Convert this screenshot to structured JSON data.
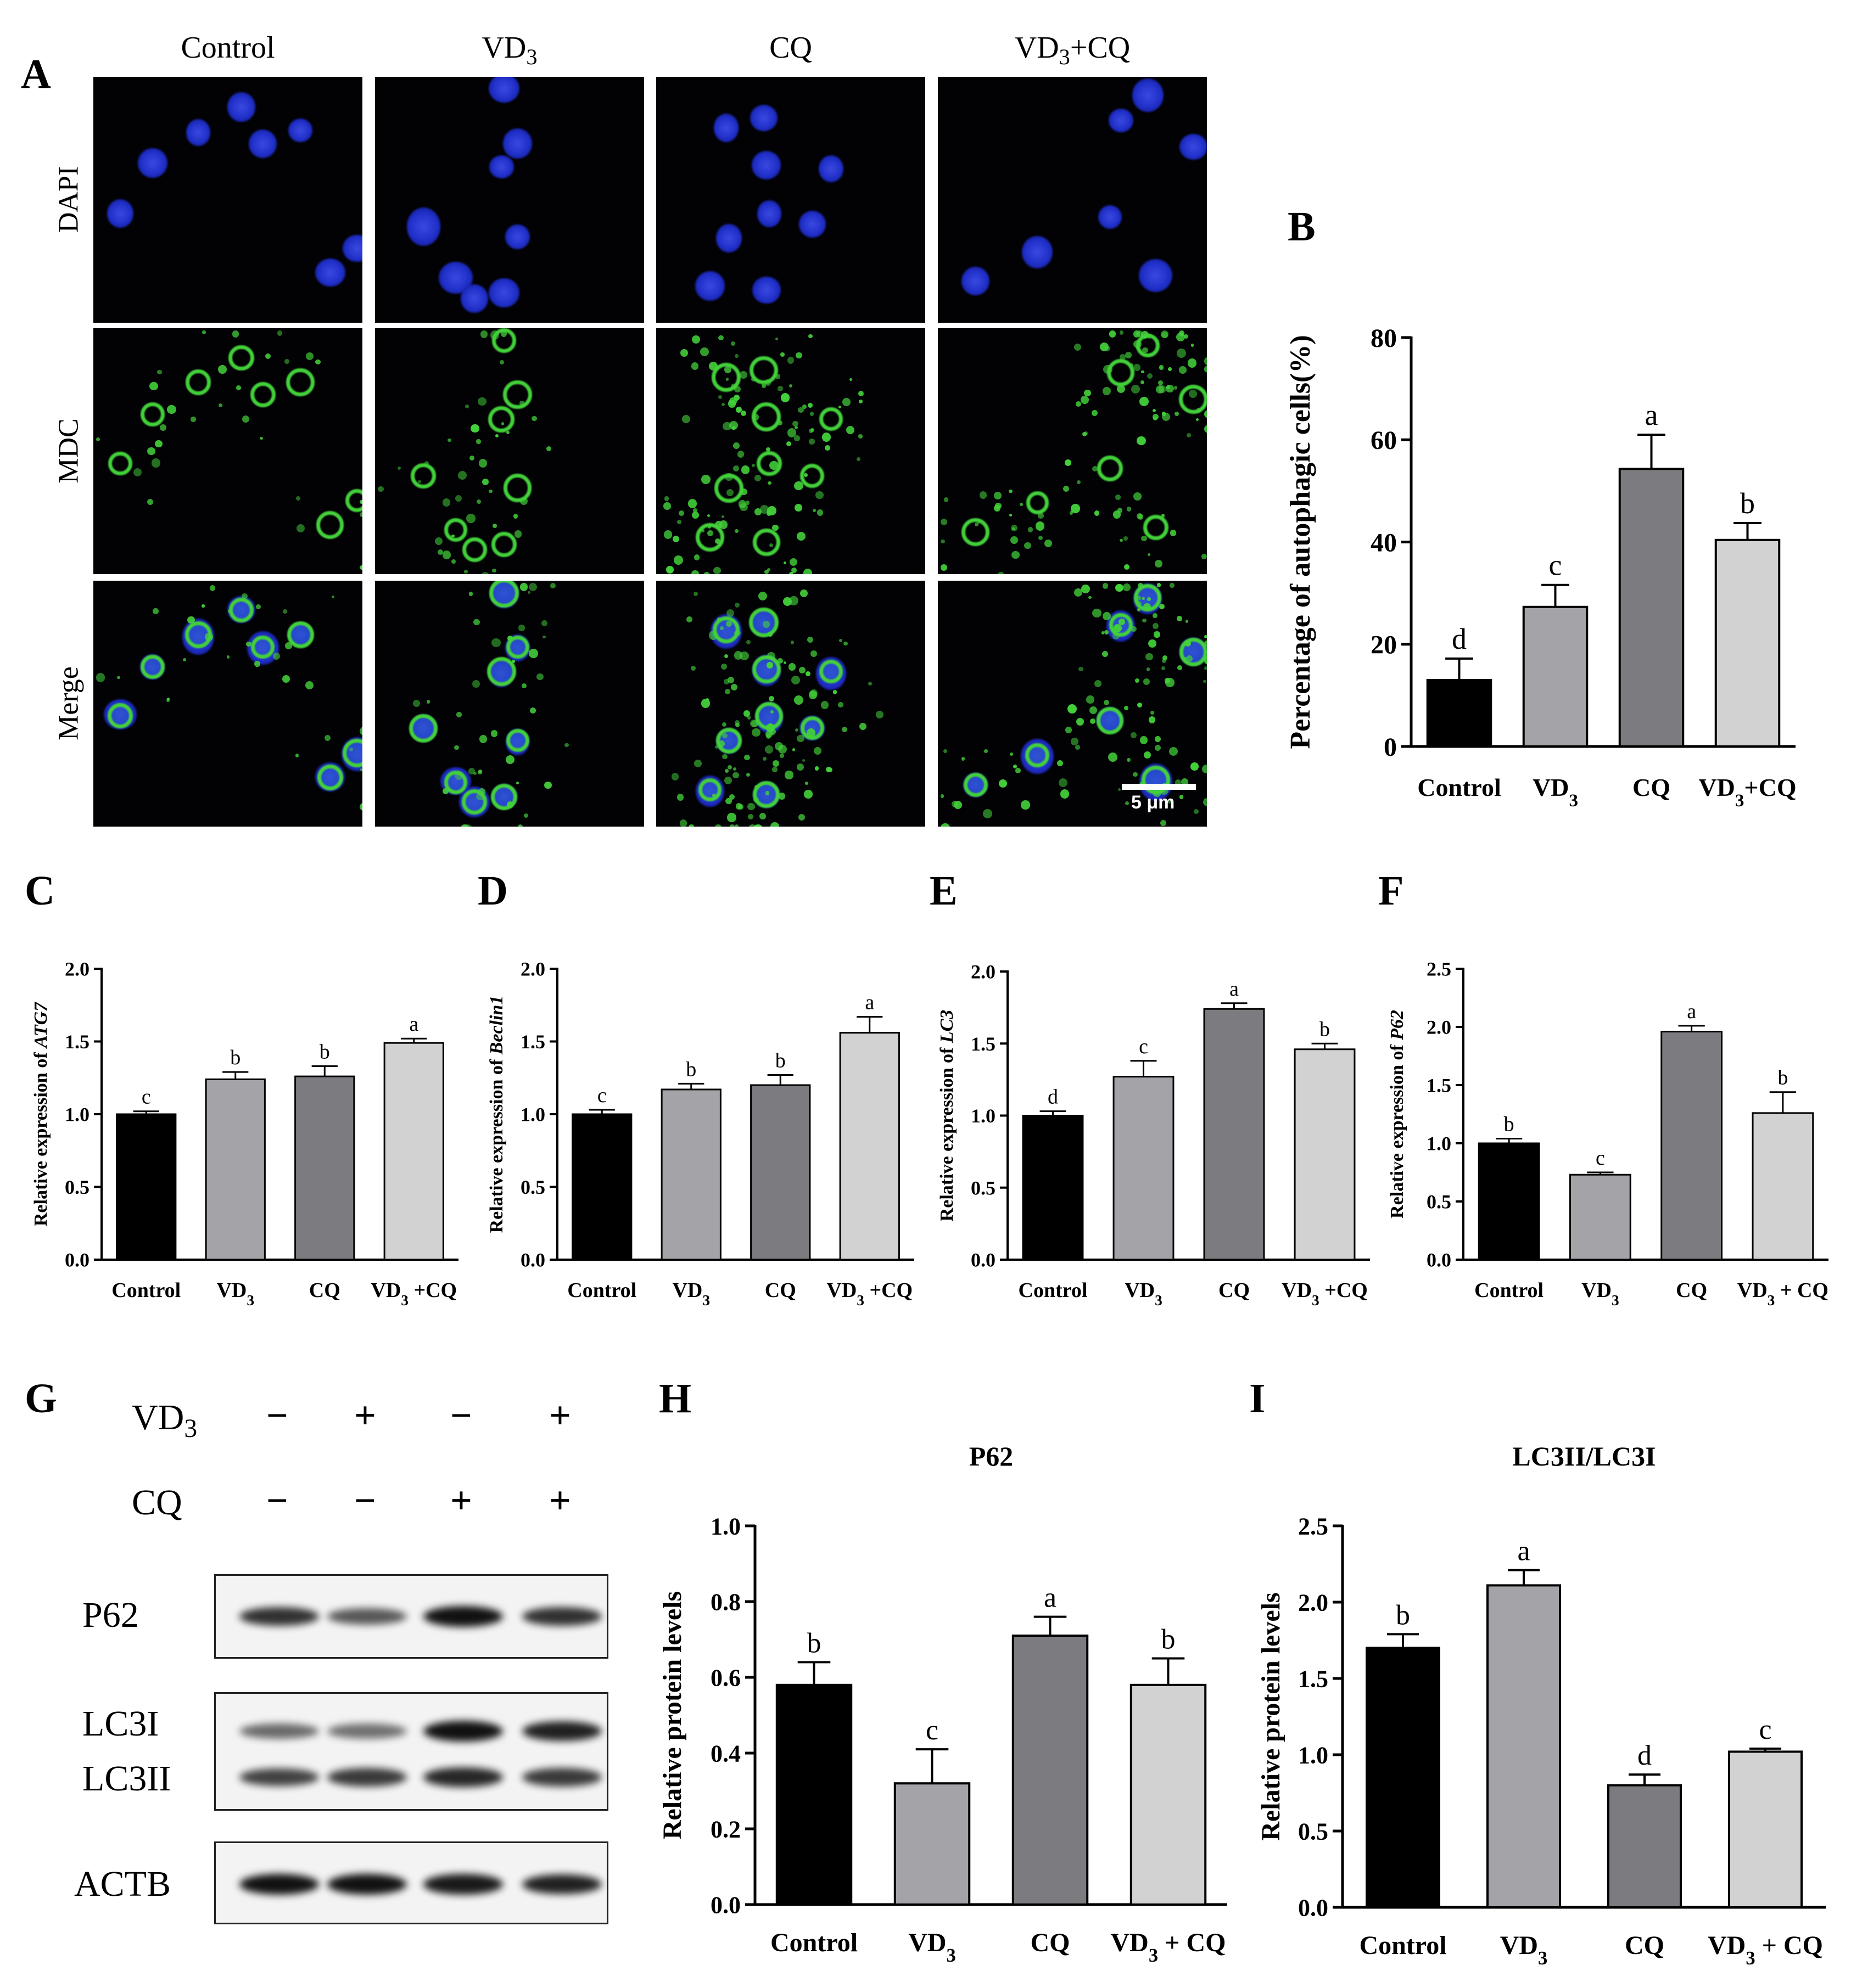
{
  "panel_letters": {
    "A": "A",
    "B": "B",
    "C": "C",
    "D": "D",
    "E": "E",
    "F": "F",
    "G": "G",
    "H": "H",
    "I": "I"
  },
  "panel_a": {
    "column_labels": [
      "Control",
      "VD3",
      "CQ",
      "VD3+CQ"
    ],
    "row_labels": [
      "DAPI",
      "MDC",
      "Merge"
    ],
    "scale_bar_label": "5 μm",
    "colors": {
      "dapi": "#1f2fc8",
      "mdc": "#43d13a",
      "background": "#020205"
    }
  },
  "panel_g": {
    "treatment_rows": [
      {
        "label": "VD3",
        "signs": [
          "−",
          "+",
          "−",
          "+"
        ]
      },
      {
        "label": "CQ",
        "signs": [
          "−",
          "−",
          "+",
          "+"
        ]
      }
    ],
    "blot_labels": {
      "p62": "P62",
      "lc3i": "LC3I",
      "lc3ii": "LC3II",
      "actb": "ACTB"
    },
    "band_intensity": {
      "p62": [
        0.8,
        0.55,
        1.0,
        0.8
      ],
      "lc3i": [
        0.45,
        0.4,
        1.0,
        0.9
      ],
      "lc3ii": [
        0.7,
        0.75,
        0.85,
        0.75
      ],
      "actb": [
        1.0,
        1.0,
        0.95,
        0.9
      ]
    }
  },
  "chart_data": [
    {
      "id": "B",
      "type": "bar",
      "title": "",
      "ylabel": "Percentage of autophagic cells(%)",
      "categories": [
        "Control",
        "VD3",
        "CQ",
        "VD3+CQ"
      ],
      "values": [
        13,
        27.3,
        54.3,
        40.4
      ],
      "errors": [
        4.2,
        4.3,
        6.7,
        3.3
      ],
      "letters": [
        "d",
        "c",
        "a",
        "b"
      ],
      "ylim": [
        0,
        80
      ],
      "yticks": [
        0,
        20,
        40,
        60,
        80
      ],
      "tick_labels": [
        "0",
        "20",
        "40",
        "60",
        "80"
      ]
    },
    {
      "id": "C",
      "type": "bar",
      "title": "",
      "ylabel": "Relative expression of ATG7",
      "categories": [
        "Control",
        "VD3",
        "CQ",
        "VD3 +CQ"
      ],
      "values": [
        1.0,
        1.24,
        1.26,
        1.49
      ],
      "errors": [
        0.02,
        0.05,
        0.07,
        0.03
      ],
      "letters": [
        "c",
        "b",
        "b",
        "a"
      ],
      "ylim": [
        0,
        2.0
      ],
      "yticks": [
        0,
        0.5,
        1.0,
        1.5,
        2.0
      ],
      "tick_labels": [
        "0.0",
        "0.5",
        "1.0",
        "1.5",
        "2.0"
      ]
    },
    {
      "id": "D",
      "type": "bar",
      "title": "",
      "ylabel": "Relative expression of Beclin1",
      "categories": [
        "Control",
        "VD3",
        "CQ",
        "VD3 +CQ"
      ],
      "values": [
        1.0,
        1.17,
        1.2,
        1.56
      ],
      "errors": [
        0.03,
        0.04,
        0.07,
        0.11
      ],
      "letters": [
        "c",
        "b",
        "b",
        "a"
      ],
      "ylim": [
        0,
        2.0
      ],
      "yticks": [
        0,
        0.5,
        1.0,
        1.5,
        2.0
      ],
      "tick_labels": [
        "0.0",
        "0.5",
        "1.0",
        "1.5",
        "2.0"
      ]
    },
    {
      "id": "E",
      "type": "bar",
      "title": "",
      "ylabel": "Relative expression of LC3",
      "categories": [
        "Control",
        "VD3",
        "CQ",
        "VD3 +CQ"
      ],
      "values": [
        1.0,
        1.27,
        1.74,
        1.46
      ],
      "errors": [
        0.03,
        0.11,
        0.04,
        0.04
      ],
      "letters": [
        "d",
        "c",
        "a",
        "b"
      ],
      "ylim": [
        0,
        2.0
      ],
      "yticks": [
        0,
        0.5,
        1.0,
        1.5,
        2.0
      ],
      "tick_labels": [
        "0.0",
        "0.5",
        "1.0",
        "1.5",
        "2.0"
      ]
    },
    {
      "id": "F",
      "type": "bar",
      "title": "",
      "ylabel": "Relative expression of P62",
      "categories": [
        "Control",
        "VD3",
        "CQ",
        "VD3 + CQ"
      ],
      "values": [
        1.0,
        0.73,
        1.96,
        1.26
      ],
      "errors": [
        0.04,
        0.02,
        0.05,
        0.18
      ],
      "letters": [
        "b",
        "c",
        "a",
        "b"
      ],
      "ylim": [
        0,
        2.5
      ],
      "yticks": [
        0,
        0.5,
        1.0,
        1.5,
        2.0,
        2.5
      ],
      "tick_labels": [
        "0.0",
        "0.5",
        "1.0",
        "1.5",
        "2.0",
        "2.5"
      ]
    },
    {
      "id": "H",
      "type": "bar",
      "title": "P62",
      "ylabel": "Relative protein levels",
      "categories": [
        "Control",
        "VD3",
        "CQ",
        "VD3 + CQ"
      ],
      "values": [
        0.58,
        0.32,
        0.71,
        0.58
      ],
      "errors": [
        0.06,
        0.09,
        0.05,
        0.07
      ],
      "letters": [
        "b",
        "c",
        "a",
        "b"
      ],
      "ylim": [
        0,
        1.0
      ],
      "yticks": [
        0,
        0.2,
        0.4,
        0.6,
        0.8,
        1.0
      ],
      "tick_labels": [
        "0.0",
        "0.2",
        "0.4",
        "0.6",
        "0.8",
        "1.0"
      ]
    },
    {
      "id": "I",
      "type": "bar",
      "title": "LC3II/LC3I",
      "ylabel": "Relative protein levels",
      "categories": [
        "Control",
        "VD3",
        "CQ",
        "VD3 + CQ"
      ],
      "values": [
        1.7,
        2.11,
        0.8,
        1.02
      ],
      "errors": [
        0.09,
        0.1,
        0.07,
        0.02
      ],
      "letters": [
        "b",
        "a",
        "d",
        "c"
      ],
      "ylim": [
        0,
        2.5
      ],
      "yticks": [
        0,
        0.5,
        1.0,
        1.5,
        2.0,
        2.5
      ],
      "tick_labels": [
        "0.0",
        "0.5",
        "1.0",
        "1.5",
        "2.0",
        "2.5"
      ]
    }
  ],
  "bar_colors": [
    "#000000",
    "#a3a3a8",
    "#7c7c80",
    "#d2d2d2"
  ]
}
